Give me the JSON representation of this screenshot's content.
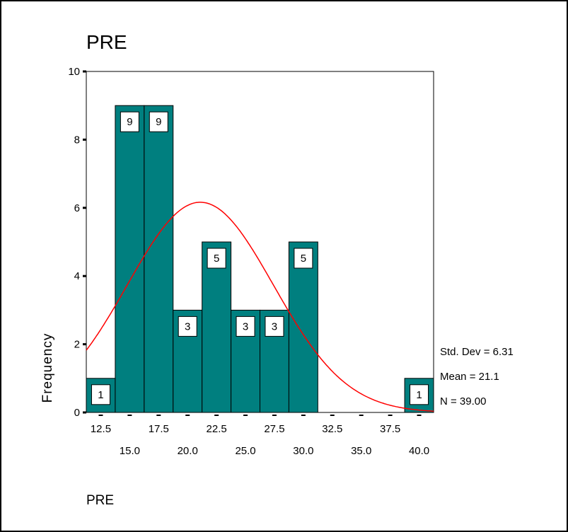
{
  "chart_data": {
    "type": "bar",
    "title": "PRE",
    "xlabel": "PRE",
    "ylabel": "Frequency",
    "bin_width": 2.5,
    "bin_centers": [
      12.5,
      15.0,
      17.5,
      20.0,
      22.5,
      25.0,
      27.5,
      30.0,
      32.5,
      35.0,
      37.5,
      40.0
    ],
    "values": [
      1,
      9,
      9,
      3,
      5,
      3,
      3,
      5,
      0,
      0,
      0,
      1
    ],
    "x_tick_labels_top": [
      "12.5",
      "17.5",
      "22.5",
      "27.5",
      "32.5",
      "37.5"
    ],
    "x_tick_labels_bottom": [
      "15.0",
      "20.0",
      "25.0",
      "30.0",
      "35.0",
      "40.0"
    ],
    "y_ticks": [
      0,
      2,
      4,
      6,
      8,
      10
    ],
    "ylim": [
      0,
      10
    ],
    "xlim": [
      11.25,
      41.25
    ],
    "bar_color": "#007f7f",
    "curve_color": "#ff0000",
    "normal_curve": {
      "mean": 21.1,
      "std": 6.31,
      "n": 39
    },
    "stats": [
      "Std. Dev = 6.31",
      "Mean = 21.1",
      "N = 39.00"
    ],
    "grid": false
  }
}
